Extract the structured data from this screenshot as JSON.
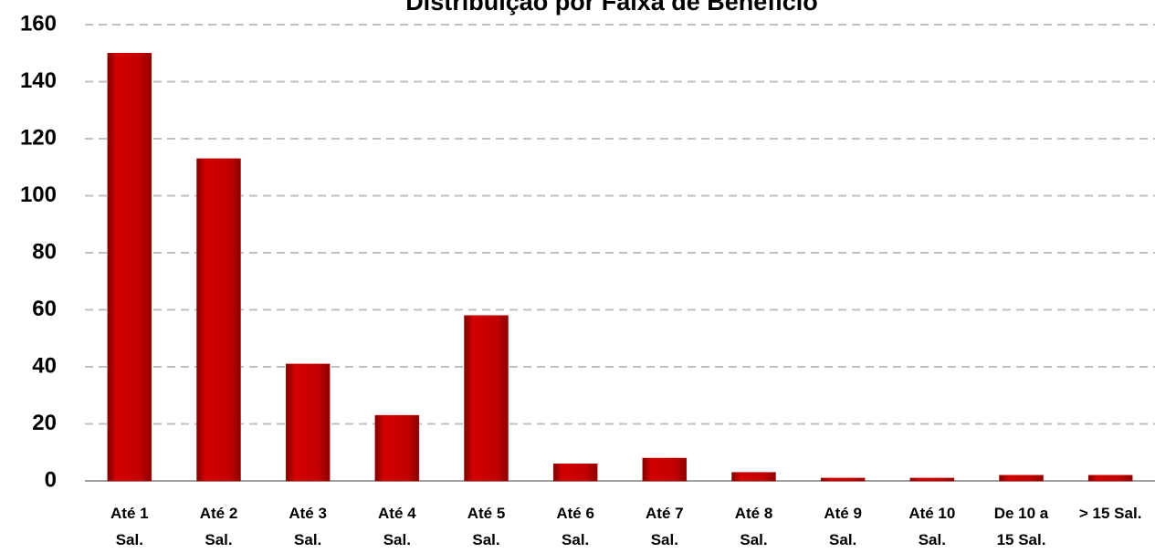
{
  "chart_data": {
    "type": "bar",
    "title": "Distribuição por Faixa de Benefício",
    "categories": [
      "Até 1\nSal.",
      "Até 2\nSal.",
      "Até 3\nSal.",
      "Até 4\nSal.",
      "Até 5\nSal.",
      "Até 6\nSal.",
      "Até 7\nSal.",
      "Até 8\nSal.",
      "Até 9\nSal.",
      "Até 10\nSal.",
      "De 10 a\n15 Sal.",
      "> 15 Sal."
    ],
    "values": [
      150,
      113,
      41,
      23,
      58,
      6,
      8,
      3,
      1,
      1,
      2,
      2
    ],
    "color": "#c00000",
    "ylim": [
      0,
      160
    ],
    "yticks": [
      0,
      20,
      40,
      60,
      80,
      100,
      120,
      140,
      160
    ],
    "grid": true
  }
}
